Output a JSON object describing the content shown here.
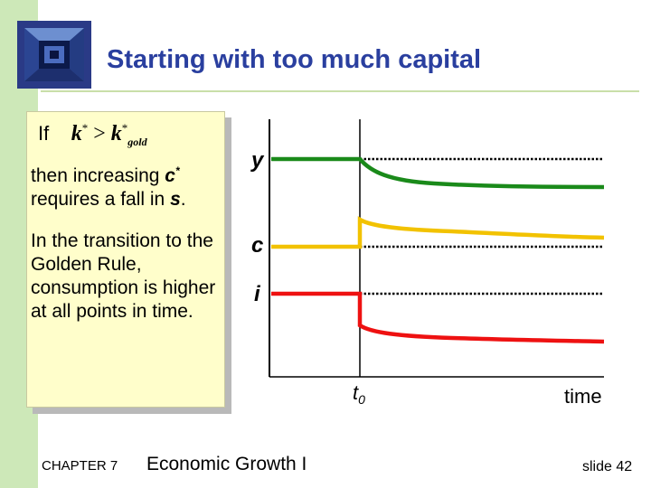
{
  "slide": {
    "title": "Starting with too much capital",
    "footer": {
      "chapter": "CHAPTER 7",
      "book_title": "Economic Growth I",
      "slide_number": "slide 42"
    }
  },
  "panel": {
    "if_word": "If",
    "inequality": {
      "lhs": "k",
      "lhs_sup": "*",
      "op": ">",
      "rhs": "k",
      "rhs_sup": "*",
      "rhs_sub": "gold"
    },
    "para1": {
      "a": "then increasing ",
      "b": "c",
      "b_sup": "*",
      "c": " requires a fall in ",
      "d": "s",
      "e": "."
    },
    "para2": "In the transition to the Golden Rule, consumption is higher at all points in time."
  },
  "diagram": {
    "labels": {
      "y": "y",
      "c": "c",
      "i": "i",
      "t0": "t",
      "t0_sub": "0",
      "time": "time"
    },
    "colors": {
      "y": "#1a8a1a",
      "c": "#f2c200",
      "i": "#ee1111",
      "axis": "#000000",
      "dotted": "#000000"
    }
  }
}
